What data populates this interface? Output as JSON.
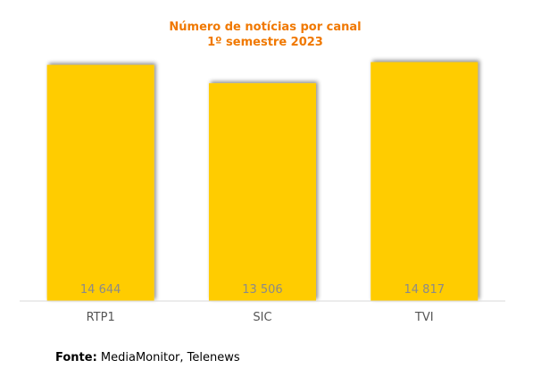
{
  "chart_data": {
    "type": "bar",
    "title": [
      "Número de notícias por canal",
      "1º semestre 2023"
    ],
    "categories": [
      "RTP1",
      "SIC",
      "TVI"
    ],
    "values": [
      14644,
      13506,
      14817
    ],
    "value_labels": [
      "14 644",
      "13 506",
      "14 817"
    ],
    "ylim": [
      0,
      14900
    ],
    "grid": false,
    "legend": "none",
    "bar_color": "#ffcc00",
    "title_color": "#f07800"
  },
  "source": {
    "label": "Fonte:",
    "text": "MediaMonitor, Telenews"
  }
}
